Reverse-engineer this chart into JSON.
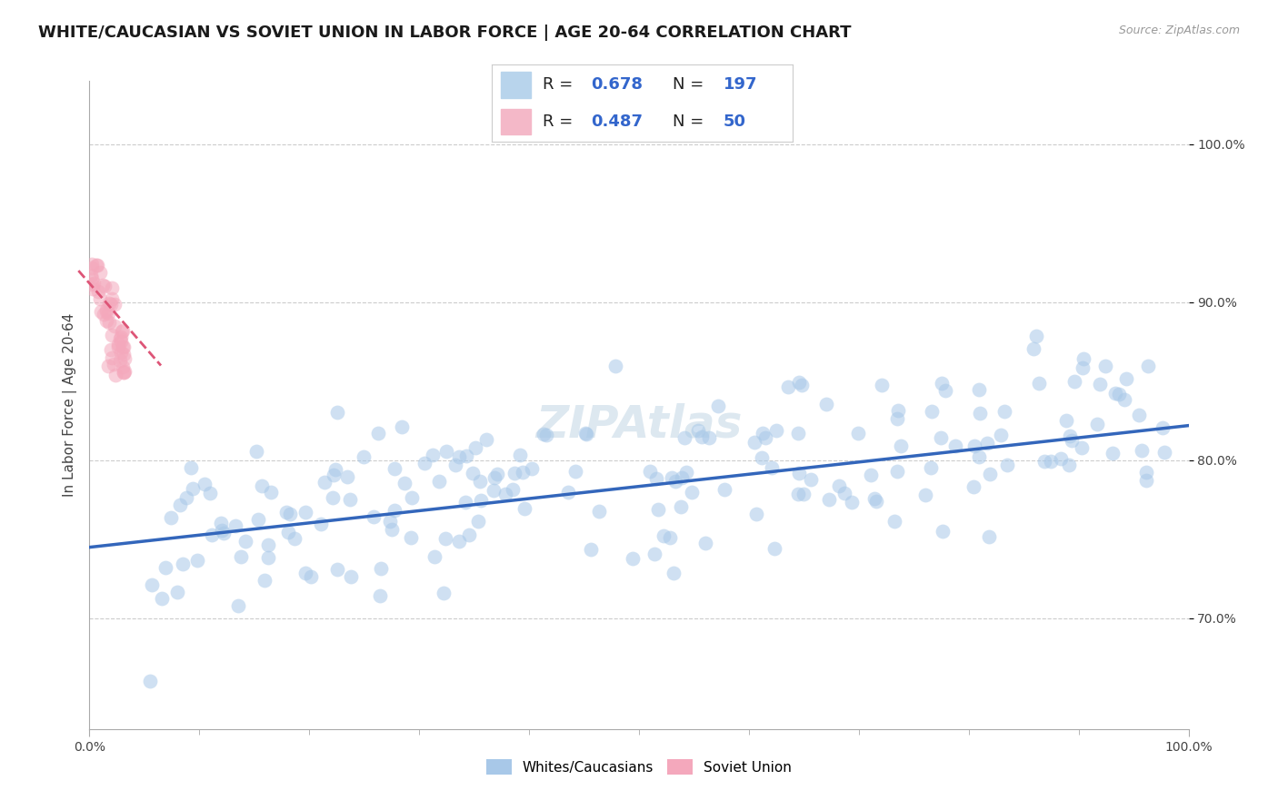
{
  "title": "WHITE/CAUCASIAN VS SOVIET UNION IN LABOR FORCE | AGE 20-64 CORRELATION CHART",
  "source_text": "Source: ZipAtlas.com",
  "ylabel": "In Labor Force | Age 20-64",
  "xlim": [
    0.0,
    1.0
  ],
  "ylim": [
    0.63,
    1.04
  ],
  "yticks": [
    0.7,
    0.8,
    0.9,
    1.0
  ],
  "ytick_labels": [
    "70.0%",
    "80.0%",
    "90.0%",
    "100.0%"
  ],
  "xticks": [
    0.0,
    1.0
  ],
  "xtick_labels": [
    "0.0%",
    "100.0%"
  ],
  "grid_color": "#cccccc",
  "background_color": "#ffffff",
  "blue_color": "#a8c8e8",
  "pink_color": "#f4a8bc",
  "line_blue": "#3366bb",
  "line_pink": "#dd5577",
  "legend_box_blue": "#b8d4ec",
  "legend_box_pink": "#f4b8c8",
  "legend_value_color": "#3366cc",
  "title_fontsize": 13,
  "axis_label_fontsize": 11,
  "tick_fontsize": 10,
  "watermark_fontsize": 36,
  "watermark_color": "#dde8f0",
  "scatter_size": 130,
  "scatter_alpha": 0.55,
  "blue_line_x0": 0.0,
  "blue_line_x1": 1.0,
  "blue_line_y0": 0.745,
  "blue_line_y1": 0.822,
  "pink_line_x0": -0.01,
  "pink_line_x1": 0.065,
  "pink_line_y0": 0.92,
  "pink_line_y1": 0.86
}
